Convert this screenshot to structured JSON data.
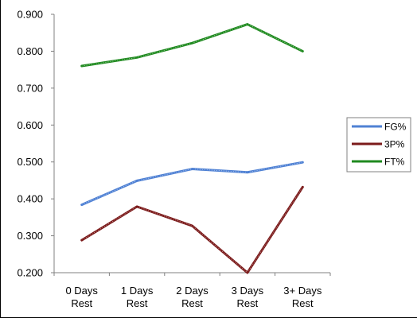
{
  "chart_data": {
    "type": "line",
    "title": "",
    "xlabel": "",
    "ylabel": "",
    "categories": [
      "0 Days Rest",
      "1 Days Rest",
      "2 Days Rest",
      "3 Days Rest",
      "3+ Days Rest"
    ],
    "category_lines": [
      [
        "0 Days",
        "Rest"
      ],
      [
        "1 Days",
        "Rest"
      ],
      [
        "2 Days",
        "Rest"
      ],
      [
        "3 Days",
        "Rest"
      ],
      [
        "3+ Days",
        "Rest"
      ]
    ],
    "y_ticks": [
      "0.200",
      "0.300",
      "0.400",
      "0.500",
      "0.600",
      "0.700",
      "0.800",
      "0.900"
    ],
    "ylim": [
      0.2,
      0.9
    ],
    "grid": false,
    "legend_position": "right",
    "series": [
      {
        "name": "FG%",
        "color": "#4f81d4",
        "values": [
          0.384,
          0.449,
          0.481,
          0.472,
          0.499
        ]
      },
      {
        "name": "3P%",
        "color": "#7b1a1a",
        "values": [
          0.288,
          0.379,
          0.327,
          0.2,
          0.432
        ]
      },
      {
        "name": "FT%",
        "color": "#1f8a1f",
        "values": [
          0.76,
          0.783,
          0.822,
          0.873,
          0.8
        ]
      }
    ]
  }
}
